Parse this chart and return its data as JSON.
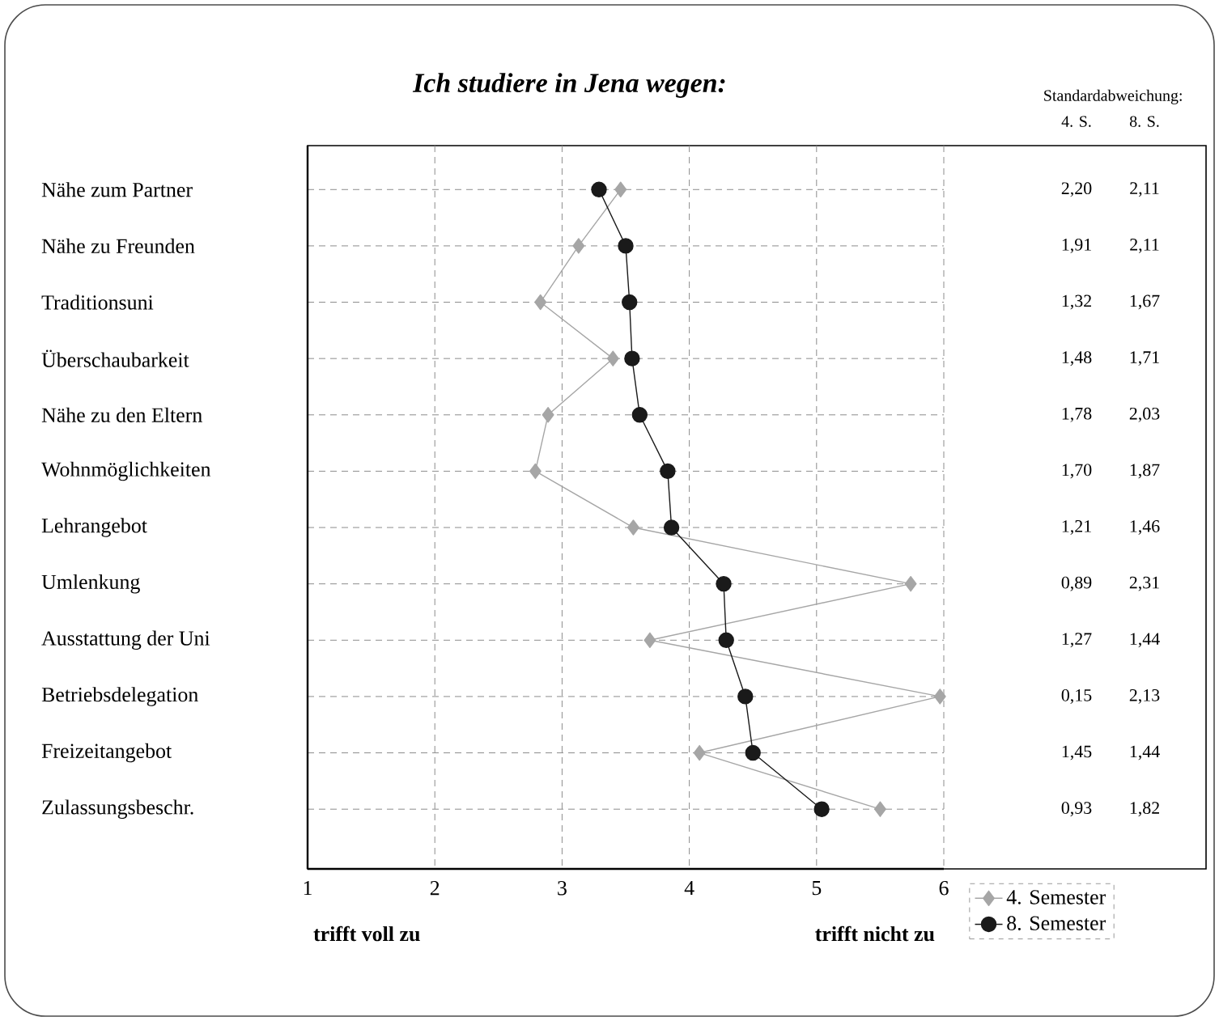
{
  "chart_data": {
    "type": "line",
    "orientation": "horizontal",
    "title": "Ich studiere in Jena wegen:",
    "categories": [
      "Nähe zum Partner",
      "Nähe zu Freunden",
      "Traditionsuni",
      "Überschaubarkeit",
      "Nähe zu den Eltern",
      "Wohnmöglichkeiten",
      "Lehrangebot",
      "Umlenkung",
      "Ausstattung der Uni",
      "Betriebsdelegation",
      "Freizeitangebot",
      "Zulassungsbeschr."
    ],
    "series": [
      {
        "name": "4. Semester",
        "color": "#a6a6a6",
        "marker": "diamond",
        "values": [
          3.46,
          3.13,
          2.83,
          3.4,
          2.89,
          2.79,
          3.56,
          5.74,
          3.69,
          5.97,
          4.08,
          5.5
        ]
      },
      {
        "name": "8. Semester",
        "color": "#1a1a1a",
        "marker": "circle",
        "values": [
          3.29,
          3.5,
          3.53,
          3.55,
          3.61,
          3.83,
          3.86,
          4.27,
          4.29,
          4.44,
          4.5,
          5.04
        ]
      }
    ],
    "xlim": [
      1,
      6
    ],
    "xticks": [
      1,
      2,
      3,
      4,
      5,
      6
    ],
    "grid": true,
    "legend": "bottom right",
    "annotations": [
      "Standardabweichung:",
      "4. S.",
      "8. S.",
      "2,20",
      "2,11",
      "1,91",
      "2,11",
      "1,32",
      "1,67",
      "1,48",
      "1,71",
      "1,78",
      "2,03",
      "1,70",
      "1,87",
      "1,21",
      "1,46",
      "0,89",
      "2,31",
      "1,27",
      "1,44",
      "0,15",
      "2,13",
      "1,45",
      "1,44",
      "0,93",
      "1,82",
      "trifft voll zu",
      "trifft nicht zu"
    ]
  }
}
